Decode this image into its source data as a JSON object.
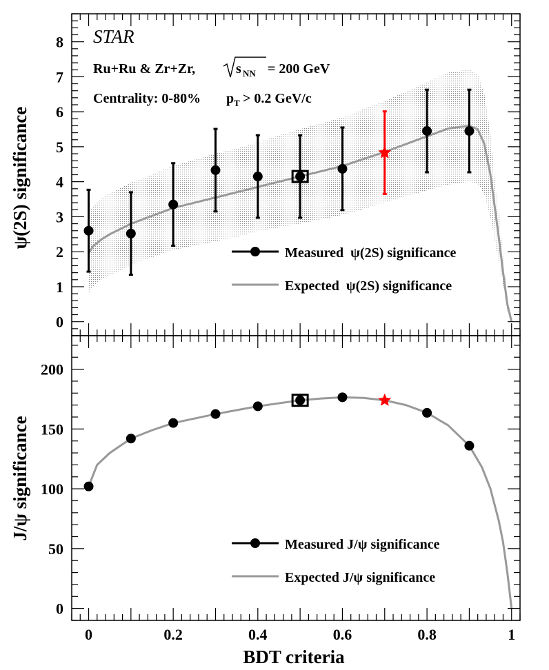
{
  "chart_data": [
    {
      "type": "scatter",
      "panel": "top",
      "ylabel": "ψ(2S) significance",
      "xlim": [
        -0.04,
        1.02
      ],
      "ylim": [
        -0.4,
        8.8
      ],
      "yticks": [
        0,
        1,
        2,
        3,
        4,
        5,
        6,
        7,
        8
      ],
      "annotations": {
        "experiment": "STAR",
        "system_prefix": "Ru+Ru & Zr+Zr,",
        "energy_s": "s",
        "energy_sub": "NN",
        "energy_value": "= 200 GeV",
        "centrality": "Centrality: 0-80%",
        "pt_p": "p",
        "pt_sub": "T",
        "pt_cut": "> 0.2 GeV/c"
      },
      "series": [
        {
          "name": "Measured  ψ(2S) significance",
          "kind": "points",
          "x": [
            0.0,
            0.1,
            0.2,
            0.3,
            0.4,
            0.5,
            0.6,
            0.7,
            0.8,
            0.9
          ],
          "y": [
            2.6,
            2.52,
            3.35,
            4.33,
            4.15,
            4.15,
            4.37,
            4.83,
            5.45,
            5.45
          ],
          "err": [
            1.17,
            1.18,
            1.18,
            1.18,
            1.18,
            1.18,
            1.18,
            1.18,
            1.18,
            1.18
          ],
          "marker": [
            "circle",
            "circle",
            "circle",
            "circle",
            "circle",
            "box",
            "circle",
            "star",
            "circle",
            "circle"
          ],
          "colors": [
            "#000000",
            "#000000",
            "#000000",
            "#000000",
            "#000000",
            "#000000",
            "#000000",
            "#ff0000",
            "#000000",
            "#000000"
          ]
        },
        {
          "name": "Expected  ψ(2S) significance",
          "kind": "line_band",
          "x": [
            0.0,
            0.01,
            0.03,
            0.05,
            0.1,
            0.2,
            0.3,
            0.4,
            0.5,
            0.6,
            0.7,
            0.8,
            0.85,
            0.9,
            0.92,
            0.935,
            0.95,
            0.96,
            0.97,
            0.98,
            0.99,
            1.0
          ],
          "y": [
            1.95,
            2.15,
            2.35,
            2.5,
            2.8,
            3.25,
            3.55,
            3.85,
            4.15,
            4.45,
            4.85,
            5.3,
            5.52,
            5.6,
            5.5,
            5.1,
            4.2,
            3.3,
            2.4,
            1.4,
            0.5,
            0.0
          ],
          "band": [
            1.15,
            1.15,
            1.15,
            1.17,
            1.18,
            1.2,
            1.25,
            1.28,
            1.35,
            1.4,
            1.45,
            1.55,
            1.6,
            1.6,
            1.55,
            1.45,
            1.2,
            0.95,
            0.7,
            0.45,
            0.2,
            0.0
          ],
          "color": "#999999"
        }
      ],
      "legend": "bottom-right"
    },
    {
      "type": "scatter",
      "panel": "bottom",
      "xlabel": "BDT criteria",
      "ylabel": "J/ψ significance",
      "xlim": [
        -0.04,
        1.02
      ],
      "ylim": [
        -10,
        228
      ],
      "xticks": [
        0,
        0.2,
        0.4,
        0.6,
        0.8,
        1
      ],
      "yticks": [
        0,
        50,
        100,
        150,
        200
      ],
      "series": [
        {
          "name": "Measured J/ψ significance",
          "kind": "points",
          "x": [
            0.0,
            0.1,
            0.2,
            0.3,
            0.4,
            0.5,
            0.6,
            0.7,
            0.8,
            0.9
          ],
          "y": [
            102,
            142,
            155,
            162.5,
            169,
            174,
            176.5,
            174,
            163.5,
            136
          ],
          "marker": [
            "circle",
            "circle",
            "circle",
            "circle",
            "circle",
            "box",
            "circle",
            "star",
            "circle",
            "circle"
          ],
          "colors": [
            "#000000",
            "#000000",
            "#000000",
            "#000000",
            "#000000",
            "#000000",
            "#000000",
            "#ff0000",
            "#000000",
            "#000000"
          ]
        },
        {
          "name": "Expected J/ψ significance",
          "kind": "line",
          "x": [
            0.0,
            0.02,
            0.05,
            0.1,
            0.15,
            0.2,
            0.3,
            0.4,
            0.5,
            0.55,
            0.6,
            0.65,
            0.7,
            0.75,
            0.8,
            0.85,
            0.9,
            0.93,
            0.95,
            0.97,
            0.98,
            0.99,
            1.0
          ],
          "y": [
            102,
            120,
            130,
            142,
            149,
            155,
            162.5,
            169,
            174,
            175.5,
            176.5,
            176,
            174,
            170,
            163.5,
            153,
            136,
            118,
            100,
            73,
            55,
            30,
            0
          ],
          "color": "#999999"
        }
      ],
      "legend": "bottom-right"
    }
  ]
}
